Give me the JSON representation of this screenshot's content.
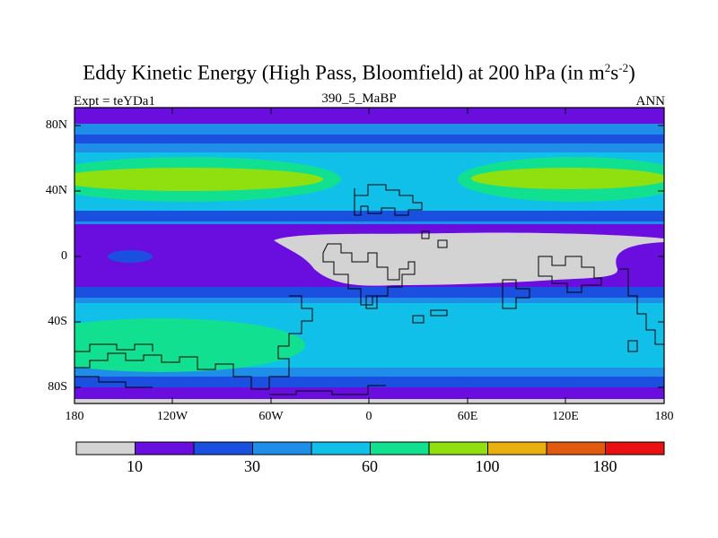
{
  "header": {
    "title_main": "Eddy Kinetic Energy (High Pass, Bloomfield) at 200 hPa (in m",
    "title_sup1": "2",
    "title_mid": "s",
    "title_sup2": "-2",
    "title_end": ")",
    "subtitle": "390_5_MaBP",
    "left_label": "Expt = teYDa1",
    "right_label": "ANN"
  },
  "axes": {
    "lat_labels": [
      "80N",
      "40N",
      "0",
      "40S",
      "80S"
    ],
    "lon_labels": [
      "180",
      "120W",
      "60W",
      "0",
      "60E",
      "120E",
      "180"
    ]
  },
  "colorbar": {
    "colors": [
      "#d3d3d3",
      "#6a0ee0",
      "#1a4fe0",
      "#1e8ee8",
      "#10c0e8",
      "#10e090",
      "#90e010",
      "#e8b010",
      "#e05a10",
      "#e81010"
    ],
    "labels": [
      "10",
      "30",
      "60",
      "100",
      "180"
    ]
  }
}
